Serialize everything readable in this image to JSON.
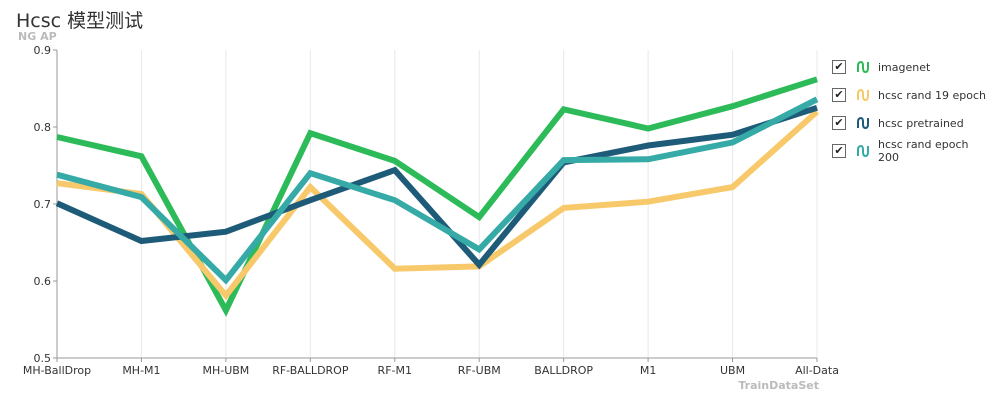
{
  "title": "Hcsc 模型测试",
  "legend_check_glyph": "✔",
  "chart_data": {
    "type": "line",
    "title": "Hcsc 模型测试",
    "ylabel": "NG AP",
    "xlabel": "TrainDataSet",
    "ylim": [
      0.5,
      0.9
    ],
    "yticks": [
      "0.5",
      "0.6",
      "0.7",
      "0.8",
      "0.9"
    ],
    "categories": [
      "MH-BallDrop",
      "MH-M1",
      "MH-UBM",
      "RF-BALLDROP",
      "RF-M1",
      "RF-UBM",
      "BALLDROP",
      "M1",
      "UBM",
      "All-Data"
    ],
    "grid": "vertical",
    "legend_position": "right",
    "series": [
      {
        "name": "imagenet",
        "color": "#2dbb5a",
        "values": [
          0.787,
          0.762,
          0.562,
          0.792,
          0.756,
          0.683,
          0.823,
          0.798,
          0.827,
          0.862
        ]
      },
      {
        "name": "hcsc rand 19 epoch",
        "color": "#f8c96a",
        "values": [
          0.727,
          0.713,
          0.581,
          0.722,
          0.616,
          0.619,
          0.695,
          0.703,
          0.722,
          0.82
        ]
      },
      {
        "name": "hcsc pretrained",
        "color": "#1e5b78",
        "values": [
          0.701,
          0.652,
          0.664,
          0.705,
          0.744,
          0.621,
          0.754,
          0.776,
          0.79,
          0.825
        ]
      },
      {
        "name": "hcsc rand epoch 200",
        "color": "#35aaa6",
        "values": [
          0.738,
          0.709,
          0.601,
          0.74,
          0.705,
          0.641,
          0.757,
          0.758,
          0.78,
          0.836
        ]
      }
    ]
  }
}
